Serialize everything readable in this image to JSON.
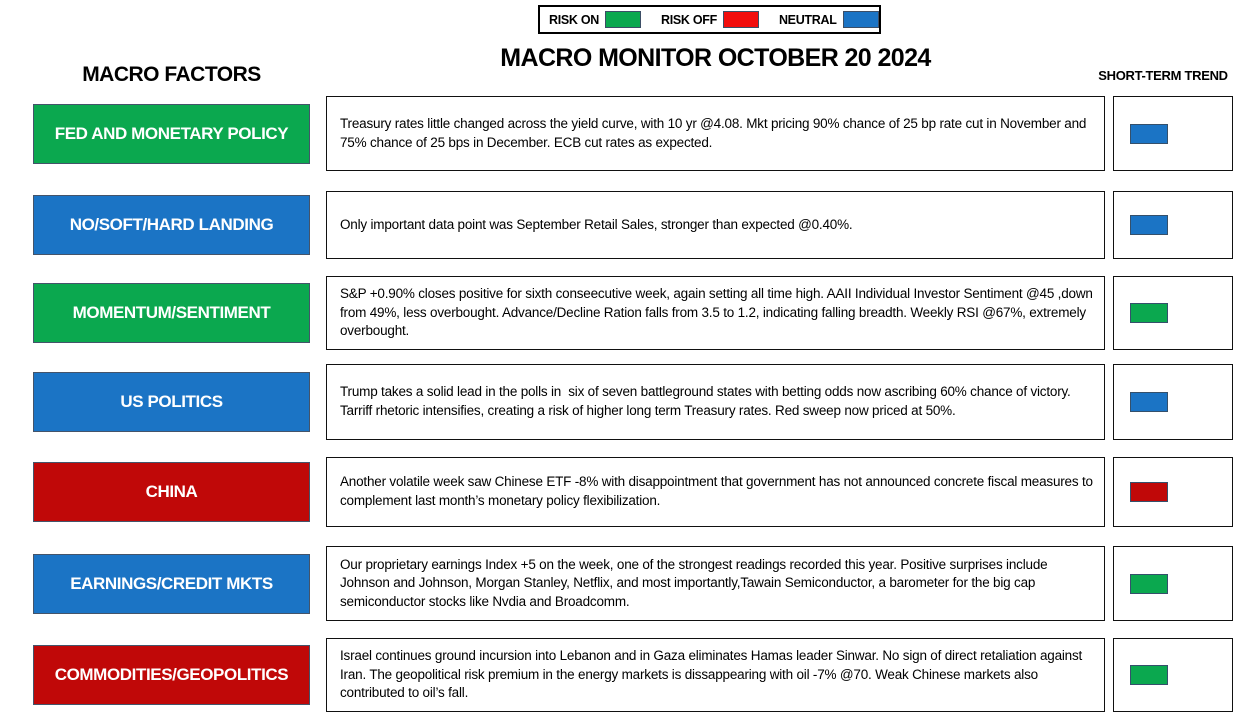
{
  "page": {
    "title": "MACRO MONITOR OCTOBER 20 2024",
    "left_header": "MACRO FACTORS",
    "right_header": "SHORT-TERM TREND"
  },
  "legend": {
    "items": [
      {
        "label": "RISK ON",
        "color": "#0ba84f"
      },
      {
        "label": "RISK OFF",
        "color": "#f20d0d"
      },
      {
        "label": "NEUTRAL",
        "color": "#1b74c5"
      }
    ]
  },
  "colors": {
    "risk_on_green": "#0ba84f",
    "risk_off_red_bright": "#f20d0d",
    "risk_off_red_dark": "#c00808",
    "neutral_blue": "#1b74c5"
  },
  "rows": [
    {
      "factor": "FED AND MONETARY POLICY",
      "factor_color": "#0ba84f",
      "text": "Treasury rates little changed across the yield curve, with 10 yr @4.08. Mkt pricing 90% chance of 25 bp rate cut in November and 75% chance of 25 bps in December. ECB cut rates as expected.",
      "trend": "neutral",
      "trend_color": "#1b74c5"
    },
    {
      "factor": "NO/SOFT/HARD LANDING",
      "factor_color": "#1b74c5",
      "text": "Only important data point was September Retail Sales, stronger than expected @0.40%.",
      "trend": "neutral",
      "trend_color": "#1b74c5"
    },
    {
      "factor": "MOMENTUM/SENTIMENT",
      "factor_color": "#0ba84f",
      "text": "S&P +0.90% closes positive for sixth conseecutive week, again setting all time high. AAII Individual Investor Sentiment @45 ,down from 49%, less overbought. Advance/Decline Ration falls from 3.5 to 1.2, indicating falling breadth. Weekly RSI @67%, extremely overbought.",
      "trend": "risk-on",
      "trend_color": "#0ba84f"
    },
    {
      "factor": "US POLITICS",
      "factor_color": "#1b74c5",
      "text": "Trump takes a solid lead in the polls in  six of seven battleground states with betting odds now ascribing 60% chance of victory. Tarriff rhetoric intensifies, creating a risk of higher long term Treasury rates. Red sweep now priced at 50%.",
      "trend": "neutral",
      "trend_color": "#1b74c5"
    },
    {
      "factor": "CHINA",
      "factor_color": "#c00808",
      "text": "Another volatile week saw Chinese ETF -8% with disappointment that government has not announced concrete fiscal measures to complement last month’s monetary policy flexibilization.",
      "trend": "risk-off",
      "trend_color": "#c00808"
    },
    {
      "factor": "EARNINGS/CREDIT MKTS",
      "factor_color": "#1b74c5",
      "text": "Our proprietary earnings Index +5 on the week, one of the strongest readings recorded this year. Positive surprises include Johnson and Johnson, Morgan Stanley, Netflix, and most importantly,Tawain Semiconductor, a barometer for the big cap semiconductor stocks like Nvdia and Broadcomm.",
      "trend": "risk-on",
      "trend_color": "#0ba84f"
    },
    {
      "factor": "COMMODITIES/GEOPOLITICS",
      "factor_color": "#c00808",
      "text": "Israel continues ground incursion into Lebanon and in Gaza eliminates Hamas leader Sinwar. No sign of direct retaliation against Iran. The geopolitical risk premium in the energy markets is dissappearing with oil -7% @70. Weak Chinese markets also contributed to oil’s fall.",
      "trend": "risk-on",
      "trend_color": "#0ba84f"
    }
  ]
}
